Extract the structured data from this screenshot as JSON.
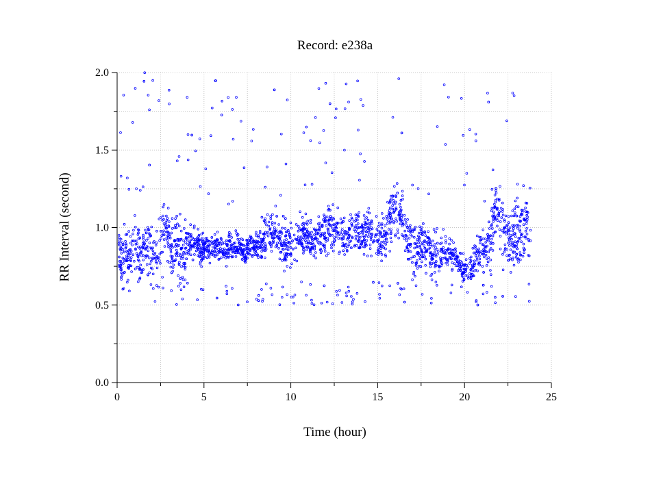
{
  "chart_data": {
    "type": "scatter",
    "title": "Record:  e238a",
    "xlabel": "Time (hour)",
    "ylabel": "RR Interval (second)",
    "xlim": [
      0,
      25
    ],
    "ylim": [
      0,
      2
    ],
    "xticks": [
      0,
      5,
      10,
      15,
      20,
      25
    ],
    "xtick_labels": [
      "0",
      "5",
      "10",
      "15",
      "20",
      "25"
    ],
    "yticks": [
      0,
      0.5,
      1,
      1.5,
      2
    ],
    "ytick_labels": [
      "0.0",
      "0.5",
      "1.0",
      "1.5",
      "2.0"
    ],
    "x_minor_step": 2.5,
    "y_minor_step": 0.25,
    "grid": true,
    "color": "#0000ff",
    "series": [
      {
        "name": "",
        "x": [
          0.1,
          0.2,
          0.3,
          0.4,
          0.5,
          0.6,
          0.8,
          1.0,
          1.2,
          1.4,
          1.6,
          1.8,
          2.0,
          2.2,
          2.4,
          2.6,
          2.8,
          3.0,
          3.2,
          3.4,
          3.6,
          3.8,
          4.0,
          4.2,
          4.4,
          4.6,
          4.8,
          5.0,
          5.3,
          5.6,
          5.9,
          6.2,
          6.5,
          6.8,
          7.1,
          7.4,
          7.7,
          8.0,
          8.3,
          8.6,
          8.9,
          9.2,
          9.5,
          9.8,
          10.1,
          10.4,
          10.7,
          11.0,
          11.3,
          11.6,
          11.9,
          12.2,
          12.5,
          12.8,
          13.1,
          13.4,
          13.7,
          14.0,
          14.3,
          14.6,
          14.9,
          15.2,
          15.5,
          15.8,
          16.1,
          16.4,
          16.7,
          17.0,
          17.3,
          17.6,
          17.9,
          18.2,
          18.5,
          18.8,
          19.1,
          19.4,
          19.7,
          20.0,
          20.3,
          20.6,
          20.9,
          21.2,
          21.5,
          21.8,
          22.1,
          22.4,
          22.7,
          23.0,
          23.3,
          23.6,
          23.8
        ],
        "y": [
          0.85,
          0.82,
          0.78,
          0.88,
          0.84,
          0.8,
          0.86,
          0.9,
          0.84,
          0.8,
          0.86,
          0.88,
          0.82,
          0.8,
          0.84,
          0.95,
          1.0,
          0.9,
          0.82,
          0.9,
          0.85,
          0.8,
          0.88,
          0.92,
          0.86,
          0.9,
          0.84,
          0.88,
          0.87,
          0.89,
          0.86,
          0.85,
          0.88,
          0.87,
          0.86,
          0.84,
          0.87,
          0.88,
          0.9,
          0.96,
          0.98,
          0.95,
          0.9,
          0.86,
          0.92,
          0.96,
          0.95,
          0.93,
          0.92,
          0.95,
          0.94,
          1.0,
          0.98,
          0.96,
          0.95,
          0.97,
          0.98,
          0.96,
          0.98,
          1.0,
          0.95,
          0.92,
          0.98,
          1.12,
          1.14,
          1.1,
          0.92,
          0.88,
          0.85,
          0.9,
          0.86,
          0.82,
          0.8,
          0.86,
          0.85,
          0.8,
          0.76,
          0.72,
          0.72,
          0.8,
          0.86,
          0.88,
          0.95,
          1.1,
          1.05,
          0.95,
          0.9,
          0.95,
          1.0,
          1.05,
          0.9
        ],
        "spread": [
          0.1,
          0.1,
          0.1,
          0.12,
          0.12,
          0.1,
          0.12,
          0.14,
          0.12,
          0.12,
          0.12,
          0.12,
          0.12,
          0.12,
          0.12,
          0.16,
          0.16,
          0.14,
          0.14,
          0.14,
          0.14,
          0.14,
          0.1,
          0.08,
          0.08,
          0.08,
          0.08,
          0.06,
          0.06,
          0.06,
          0.06,
          0.06,
          0.06,
          0.06,
          0.06,
          0.06,
          0.06,
          0.06,
          0.08,
          0.1,
          0.1,
          0.1,
          0.1,
          0.1,
          0.1,
          0.1,
          0.08,
          0.08,
          0.08,
          0.08,
          0.08,
          0.1,
          0.1,
          0.1,
          0.1,
          0.1,
          0.1,
          0.1,
          0.1,
          0.1,
          0.1,
          0.1,
          0.1,
          0.12,
          0.12,
          0.12,
          0.12,
          0.12,
          0.12,
          0.1,
          0.1,
          0.1,
          0.1,
          0.1,
          0.08,
          0.06,
          0.06,
          0.06,
          0.06,
          0.08,
          0.08,
          0.1,
          0.14,
          0.14,
          0.14,
          0.16,
          0.16,
          0.16,
          0.16,
          0.16,
          0.14
        ]
      }
    ]
  }
}
